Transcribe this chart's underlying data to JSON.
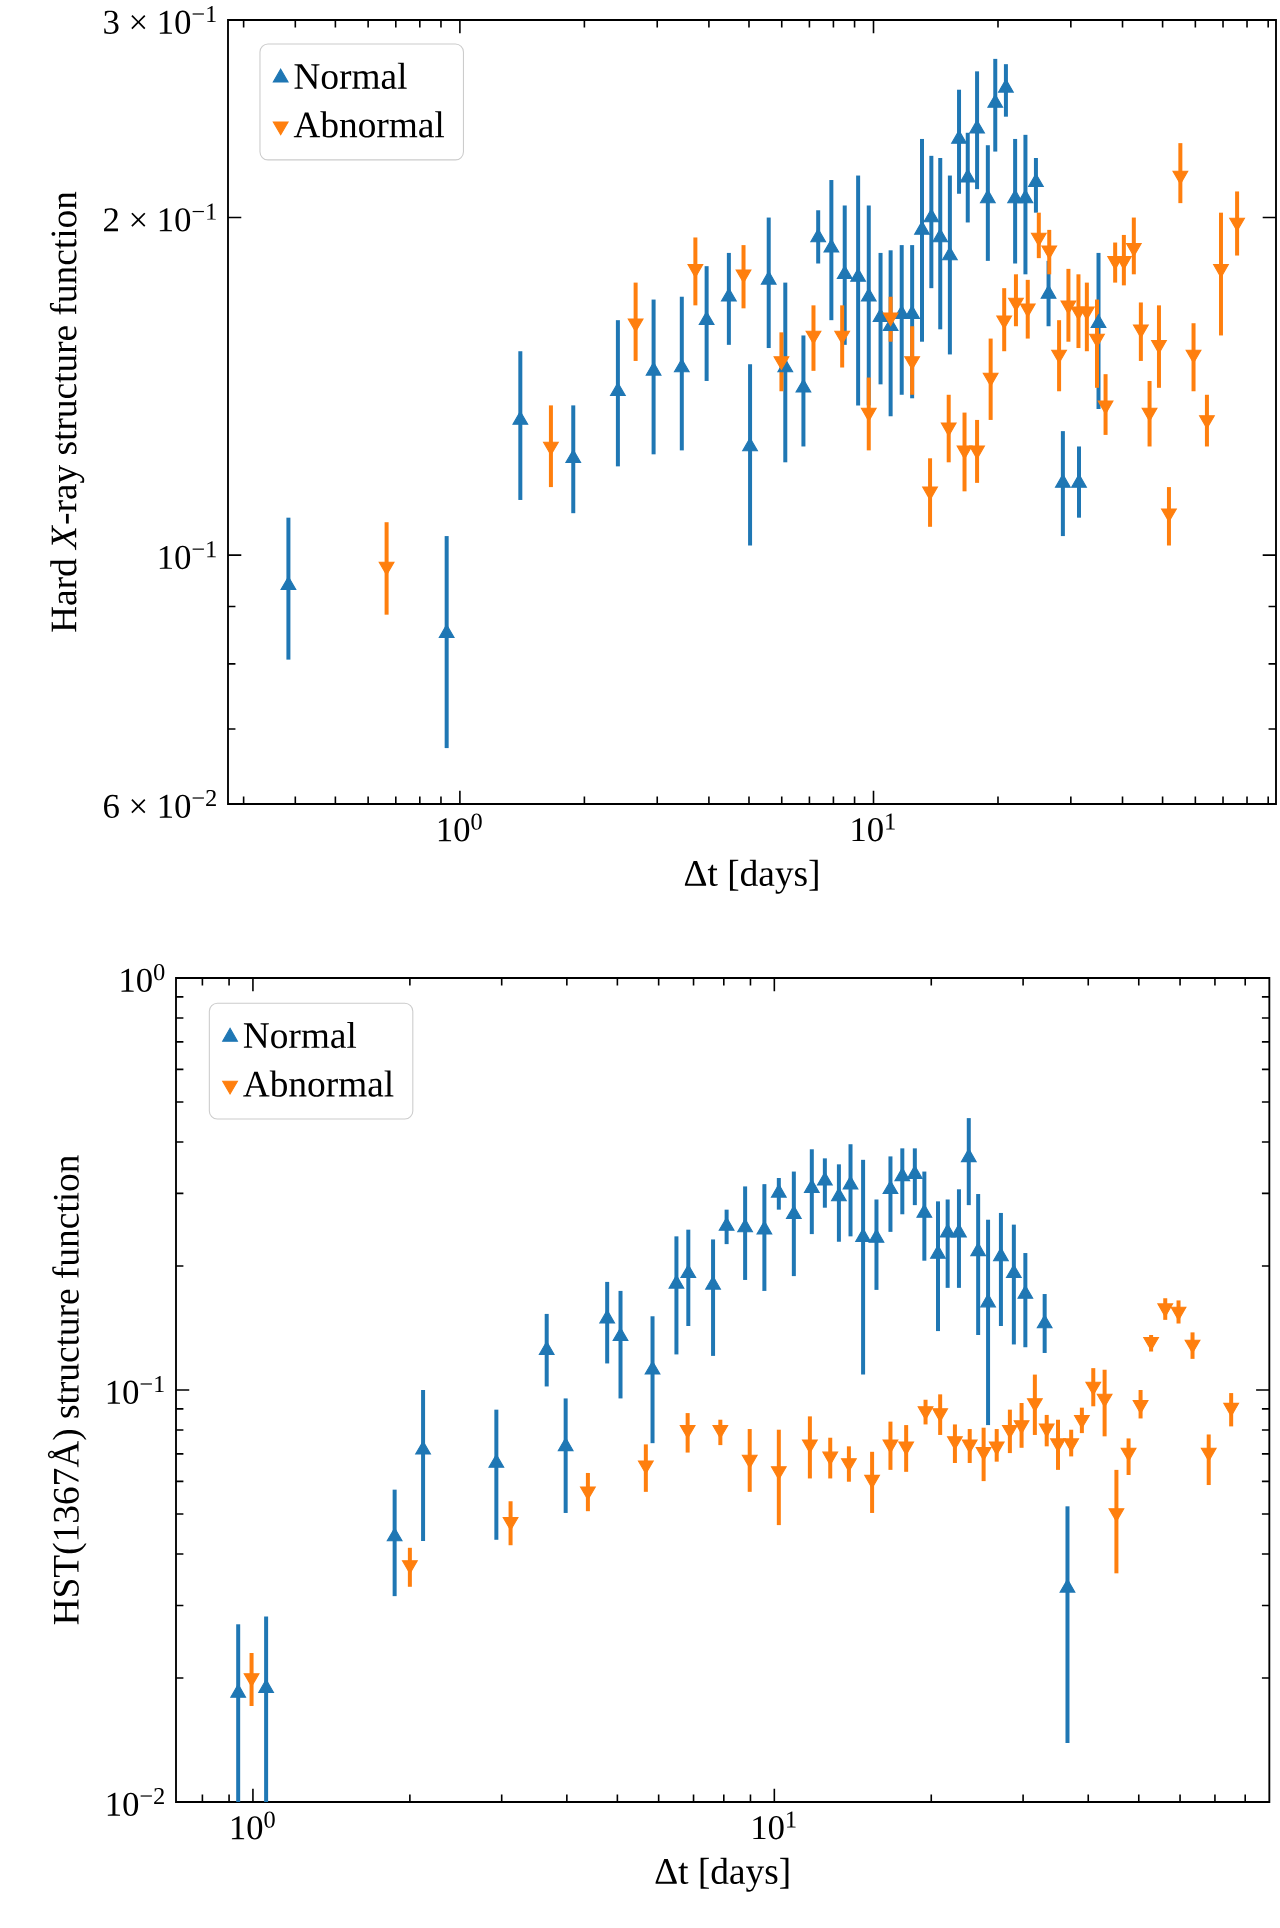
{
  "chart_data": [
    {
      "type": "scatter",
      "xlabel": "Δt [days]",
      "ylabel": "Hard *X*-ray structure function",
      "log": "xy",
      "legend": "top left",
      "xlim": [
        0.275,
        94
      ],
      "ylim": [
        0.06,
        0.3
      ],
      "xticks": [
        {
          "value": 0.3,
          "label": null
        },
        {
          "value": 0.4,
          "label": null
        },
        {
          "value": 0.5,
          "label": null
        },
        {
          "value": 0.6,
          "label": null
        },
        {
          "value": 0.7,
          "label": null
        },
        {
          "value": 0.8,
          "label": null
        },
        {
          "value": 0.9,
          "label": null
        },
        {
          "value": 1,
          "label": "10$^{0}$"
        },
        {
          "value": 2,
          "label": null
        },
        {
          "value": 3,
          "label": null
        },
        {
          "value": 4,
          "label": null
        },
        {
          "value": 5,
          "label": null
        },
        {
          "value": 6,
          "label": null
        },
        {
          "value": 7,
          "label": null
        },
        {
          "value": 8,
          "label": null
        },
        {
          "value": 9,
          "label": null
        },
        {
          "value": 10,
          "label": "10$^{1}$"
        },
        {
          "value": 20,
          "label": null
        },
        {
          "value": 30,
          "label": null
        },
        {
          "value": 40,
          "label": null
        },
        {
          "value": 50,
          "label": null
        },
        {
          "value": 60,
          "label": null
        },
        {
          "value": 70,
          "label": null
        },
        {
          "value": 80,
          "label": null
        },
        {
          "value": 90,
          "label": null
        }
      ],
      "yticks": [
        {
          "value": 0.06,
          "label": "6 × 10$^{−2}$"
        },
        {
          "value": 0.07,
          "label": null
        },
        {
          "value": 0.08,
          "label": null
        },
        {
          "value": 0.09,
          "label": null
        },
        {
          "value": 0.1,
          "label": "10$^{−1}$"
        },
        {
          "value": 0.2,
          "label": "2 × 10$^{−1}$"
        },
        {
          "value": 0.3,
          "label": "3 × 10$^{−1}$"
        }
      ],
      "series": [
        {
          "name": "Normal",
          "color": "#1f77b4",
          "marker": "triangle",
          "x": [
            0.385,
            0.929,
            1.4,
            1.88,
            2.41,
            2.94,
            3.44,
            3.95,
            4.47,
            5.03,
            5.58,
            6.12,
            6.77,
            7.35,
            7.91,
            8.52,
            9.18,
            9.74,
            10.4,
            11.0,
            11.7,
            12.4,
            13.1,
            13.8,
            14.5,
            15.3,
            16.1,
            16.9,
            17.8,
            18.9,
            19.7,
            20.9,
            22.0,
            23.3,
            24.7,
            26.5,
            28.7,
            31.4,
            35.0
          ],
          "values": [
            0.094,
            0.0852,
            0.132,
            0.122,
            0.14,
            0.146,
            0.147,
            0.162,
            0.17,
            0.125,
            0.176,
            0.147,
            0.141,
            0.192,
            0.188,
            0.178,
            0.177,
            0.17,
            0.163,
            0.16,
            0.164,
            0.164,
            0.195,
            0.2,
            0.192,
            0.185,
            0.235,
            0.217,
            0.24,
            0.208,
            0.253,
            0.261,
            0.208,
            0.208,
            0.215,
            0.171,
            0.116,
            0.116,
            0.161
          ],
          "errors": [
            [
              0.0807,
              0.108
            ],
            [
              0.0673,
              0.104
            ],
            [
              0.112,
              0.152
            ],
            [
              0.109,
              0.136
            ],
            [
              0.12,
              0.162
            ],
            [
              0.123,
              0.169
            ],
            [
              0.124,
              0.17
            ],
            [
              0.143,
              0.181
            ],
            [
              0.154,
              0.186
            ],
            [
              0.102,
              0.148
            ],
            [
              0.153,
              0.2
            ],
            [
              0.121,
              0.175
            ],
            [
              0.125,
              0.157
            ],
            [
              0.182,
              0.203
            ],
            [
              0.162,
              0.216
            ],
            [
              0.154,
              0.205
            ],
            [
              0.136,
              0.218
            ],
            [
              0.136,
              0.205
            ],
            [
              0.142,
              0.186
            ],
            [
              0.133,
              0.187
            ],
            [
              0.139,
              0.189
            ],
            [
              0.138,
              0.189
            ],
            [
              0.155,
              0.235
            ],
            [
              0.173,
              0.227
            ],
            [
              0.159,
              0.226
            ],
            [
              0.151,
              0.218
            ],
            [
              0.21,
              0.26
            ],
            [
              0.198,
              0.238
            ],
            [
              0.212,
              0.27
            ],
            [
              0.183,
              0.232
            ],
            [
              0.229,
              0.277
            ],
            [
              0.246,
              0.274
            ],
            [
              0.182,
              0.235
            ],
            [
              0.178,
              0.237
            ],
            [
              0.202,
              0.226
            ],
            [
              0.16,
              0.183
            ],
            [
              0.104,
              0.129
            ],
            [
              0.108,
              0.125
            ],
            [
              0.135,
              0.186
            ]
          ]
        },
        {
          "name": "Abnormal",
          "color": "#ff7f0e",
          "marker": "triangle",
          "x": [
            0.665,
            1.66,
            2.66,
            3.71,
            4.85,
            5.99,
            7.16,
            8.4,
            9.74,
            11.0,
            12.4,
            13.7,
            15.2,
            16.6,
            17.8,
            19.2,
            20.7,
            22.1,
            23.6,
            25.1,
            26.6,
            28.1,
            29.6,
            31.3,
            32.8,
            34.7,
            36.4,
            38.4,
            40.3,
            42.6,
            44.3,
            46.5,
            49.0,
            51.8,
            55.2,
            59.4,
            64.0,
            69.2,
            75.7
          ],
          "values": [
            0.0977,
            0.125,
            0.161,
            0.18,
            0.178,
            0.149,
            0.157,
            0.157,
            0.134,
            0.163,
            0.149,
            0.114,
            0.13,
            0.124,
            0.124,
            0.144,
            0.162,
            0.168,
            0.166,
            0.192,
            0.187,
            0.151,
            0.167,
            0.165,
            0.165,
            0.156,
            0.136,
            0.183,
            0.183,
            0.188,
            0.159,
            0.134,
            0.154,
            0.109,
            0.218,
            0.151,
            0.132,
            0.18,
            0.198
          ],
          "errors": [
            [
              0.0885,
              0.107
            ],
            [
              0.115,
              0.136
            ],
            [
              0.149,
              0.175
            ],
            [
              0.167,
              0.192
            ],
            [
              0.166,
              0.189
            ],
            [
              0.14,
              0.158
            ],
            [
              0.146,
              0.167
            ],
            [
              0.147,
              0.167
            ],
            [
              0.124,
              0.144
            ],
            [
              0.155,
              0.17
            ],
            [
              0.139,
              0.16
            ],
            [
              0.106,
              0.122
            ],
            [
              0.121,
              0.139
            ],
            [
              0.114,
              0.134
            ],
            [
              0.116,
              0.132
            ],
            [
              0.132,
              0.156
            ],
            [
              0.152,
              0.173
            ],
            [
              0.16,
              0.178
            ],
            [
              0.156,
              0.176
            ],
            [
              0.184,
              0.202
            ],
            [
              0.178,
              0.195
            ],
            [
              0.14,
              0.162
            ],
            [
              0.155,
              0.18
            ],
            [
              0.153,
              0.178
            ],
            [
              0.152,
              0.175
            ],
            [
              0.141,
              0.169
            ],
            [
              0.128,
              0.145
            ],
            [
              0.175,
              0.19
            ],
            [
              0.174,
              0.193
            ],
            [
              0.178,
              0.2
            ],
            [
              0.149,
              0.168
            ],
            [
              0.125,
              0.143
            ],
            [
              0.141,
              0.167
            ],
            [
              0.102,
              0.115
            ],
            [
              0.206,
              0.233
            ],
            [
              0.14,
              0.161
            ],
            [
              0.125,
              0.139
            ],
            [
              0.157,
              0.202
            ],
            [
              0.185,
              0.211
            ]
          ]
        }
      ]
    },
    {
      "type": "scatter",
      "xlabel": "Δt [days]",
      "ylabel": "HST(1367Å) structure function",
      "log": "xy",
      "legend": "top left",
      "xlim": [
        0.712,
        89
      ],
      "ylim": [
        0.01,
        1
      ],
      "xticks": [
        {
          "value": 0.8,
          "label": null
        },
        {
          "value": 0.9,
          "label": null
        },
        {
          "value": 1,
          "label": "10$^{0}$"
        },
        {
          "value": 2,
          "label": null
        },
        {
          "value": 3,
          "label": null
        },
        {
          "value": 4,
          "label": null
        },
        {
          "value": 5,
          "label": null
        },
        {
          "value": 6,
          "label": null
        },
        {
          "value": 7,
          "label": null
        },
        {
          "value": 8,
          "label": null
        },
        {
          "value": 9,
          "label": null
        },
        {
          "value": 10,
          "label": "10$^{1}$"
        },
        {
          "value": 20,
          "label": null
        },
        {
          "value": 30,
          "label": null
        },
        {
          "value": 40,
          "label": null
        },
        {
          "value": 50,
          "label": null
        },
        {
          "value": 60,
          "label": null
        },
        {
          "value": 70,
          "label": null
        },
        {
          "value": 80,
          "label": null
        }
      ],
      "yticks": [
        {
          "value": 0.01,
          "label": "10$^{−2}$"
        },
        {
          "value": 0.02,
          "label": null
        },
        {
          "value": 0.03,
          "label": null
        },
        {
          "value": 0.04,
          "label": null
        },
        {
          "value": 0.05,
          "label": null
        },
        {
          "value": 0.06,
          "label": null
        },
        {
          "value": 0.07,
          "label": null
        },
        {
          "value": 0.08,
          "label": null
        },
        {
          "value": 0.09,
          "label": null
        },
        {
          "value": 0.1,
          "label": "10$^{−1}$"
        },
        {
          "value": 0.2,
          "label": null
        },
        {
          "value": 0.3,
          "label": null
        },
        {
          "value": 0.4,
          "label": null
        },
        {
          "value": 0.5,
          "label": null
        },
        {
          "value": 0.6,
          "label": null
        },
        {
          "value": 0.7,
          "label": null
        },
        {
          "value": 0.8,
          "label": null
        },
        {
          "value": 0.9,
          "label": null
        },
        {
          "value": 1,
          "label": "10$^{0}$"
        }
      ],
      "series": [
        {
          "name": "Normal",
          "color": "#1f77b4",
          "marker": "triangle",
          "x": [
            0.937,
            1.06,
            1.87,
            2.12,
            2.93,
            3.66,
            3.98,
            4.78,
            5.07,
            5.84,
            6.49,
            6.84,
            7.63,
            8.1,
            8.79,
            9.57,
            10.2,
            10.9,
            11.8,
            12.5,
            13.3,
            14.0,
            14.8,
            15.7,
            16.7,
            17.6,
            18.6,
            19.4,
            20.6,
            21.5,
            22.6,
            23.6,
            24.6,
            25.7,
            27.2,
            28.8,
            30.3,
            33.0,
            36.5
          ],
          "values": [
            0.0184,
            0.0189,
            0.0441,
            0.0716,
            0.0665,
            0.125,
            0.073,
            0.149,
            0.135,
            0.112,
            0.181,
            0.192,
            0.18,
            0.25,
            0.248,
            0.245,
            0.301,
            0.267,
            0.309,
            0.322,
            0.295,
            0.315,
            0.235,
            0.234,
            0.307,
            0.33,
            0.334,
            0.269,
            0.214,
            0.241,
            0.241,
            0.367,
            0.217,
            0.163,
            0.211,
            0.192,
            0.171,
            0.145,
            0.0331
          ],
          "errors": [
            [
              0.01,
              0.027
            ],
            [
              0.01,
              0.0282
            ],
            [
              0.0316,
              0.0573
            ],
            [
              0.043,
              0.1
            ],
            [
              0.0433,
              0.0896
            ],
            [
              0.102,
              0.153
            ],
            [
              0.0503,
              0.0954
            ],
            [
              0.116,
              0.183
            ],
            [
              0.0954,
              0.174
            ],
            [
              0.0743,
              0.151
            ],
            [
              0.122,
              0.236
            ],
            [
              0.143,
              0.245
            ],
            [
              0.121,
              0.232
            ],
            [
              0.226,
              0.274
            ],
            [
              0.185,
              0.312
            ],
            [
              0.174,
              0.316
            ],
            [
              0.274,
              0.327
            ],
            [
              0.189,
              0.339
            ],
            [
              0.239,
              0.384
            ],
            [
              0.277,
              0.365
            ],
            [
              0.229,
              0.353
            ],
            [
              0.236,
              0.395
            ],
            [
              0.109,
              0.362
            ],
            [
              0.175,
              0.29
            ],
            [
              0.242,
              0.369
            ],
            [
              0.267,
              0.386
            ],
            [
              0.281,
              0.386
            ],
            [
              0.206,
              0.339
            ],
            [
              0.139,
              0.287
            ],
            [
              0.177,
              0.29
            ],
            [
              0.177,
              0.307
            ],
            [
              0.281,
              0.457
            ],
            [
              0.136,
              0.299
            ],
            [
              0.0822,
              0.259
            ],
            [
              0.143,
              0.269
            ],
            [
              0.129,
              0.252
            ],
            [
              0.127,
              0.215
            ],
            [
              0.123,
              0.171
            ],
            [
              0.0139,
              0.0522
            ]
          ]
        },
        {
          "name": "Abnormal",
          "color": "#ff7f0e",
          "marker": "triangle",
          "x": [
            0.994,
            2.0,
            3.12,
            4.39,
            5.67,
            6.82,
            7.88,
            8.97,
            10.2,
            11.7,
            12.8,
            13.9,
            15.4,
            16.7,
            17.9,
            19.5,
            20.8,
            22.2,
            23.7,
            25.2,
            26.7,
            28.3,
            29.8,
            31.6,
            33.3,
            35.0,
            37.1,
            38.9,
            40.9,
            43.0,
            45.3,
            47.8,
            50.4,
            52.8,
            56.2,
            59.6,
            63.4,
            68.1,
            75.2
          ],
          "values": [
            0.02,
            0.0376,
            0.0479,
            0.0568,
            0.0657,
            0.0801,
            0.0801,
            0.0678,
            0.0636,
            0.0738,
            0.069,
            0.0665,
            0.0606,
            0.0738,
            0.073,
            0.0889,
            0.0879,
            0.0752,
            0.0738,
            0.0708,
            0.073,
            0.0801,
            0.0822,
            0.093,
            0.0807,
            0.0743,
            0.0743,
            0.0847,
            0.102,
            0.0954,
            0.0503,
            0.0705,
            0.092,
            0.131,
            0.158,
            0.155,
            0.129,
            0.0705,
            0.0906
          ],
          "errors": [
            [
              0.0171,
              0.023
            ],
            [
              0.0333,
              0.0414
            ],
            [
              0.042,
              0.0537
            ],
            [
              0.0508,
              0.0629
            ],
            [
              0.0566,
              0.0738
            ],
            [
              0.0705,
              0.0879
            ],
            [
              0.0735,
              0.0847
            ],
            [
              0.0566,
              0.0804
            ],
            [
              0.047,
              0.0801
            ],
            [
              0.061,
              0.0863
            ],
            [
              0.061,
              0.0766
            ],
            [
              0.0599,
              0.073
            ],
            [
              0.0503,
              0.0708
            ],
            [
              0.064,
              0.0838
            ],
            [
              0.0633,
              0.0822
            ],
            [
              0.0825,
              0.0947
            ],
            [
              0.0778,
              0.0976
            ],
            [
              0.0665,
              0.0825
            ],
            [
              0.0665,
              0.0804
            ],
            [
              0.0601,
              0.081
            ],
            [
              0.067,
              0.0804
            ],
            [
              0.0703,
              0.0896
            ],
            [
              0.0724,
              0.093
            ],
            [
              0.0778,
              0.109
            ],
            [
              0.073,
              0.087
            ],
            [
              0.064,
              0.0847
            ],
            [
              0.069,
              0.0801
            ],
            [
              0.0786,
              0.0906
            ],
            [
              0.0913,
              0.113
            ],
            [
              0.0772,
              0.112
            ],
            [
              0.0359,
              0.064
            ],
            [
              0.0622,
              0.0763
            ],
            [
              0.0853,
              0.1
            ],
            [
              0.124,
              0.136
            ],
            [
              0.148,
              0.167
            ],
            [
              0.145,
              0.165
            ],
            [
              0.119,
              0.138
            ],
            [
              0.0588,
              0.078
            ],
            [
              0.0816,
              0.0983
            ]
          ]
        }
      ]
    }
  ]
}
